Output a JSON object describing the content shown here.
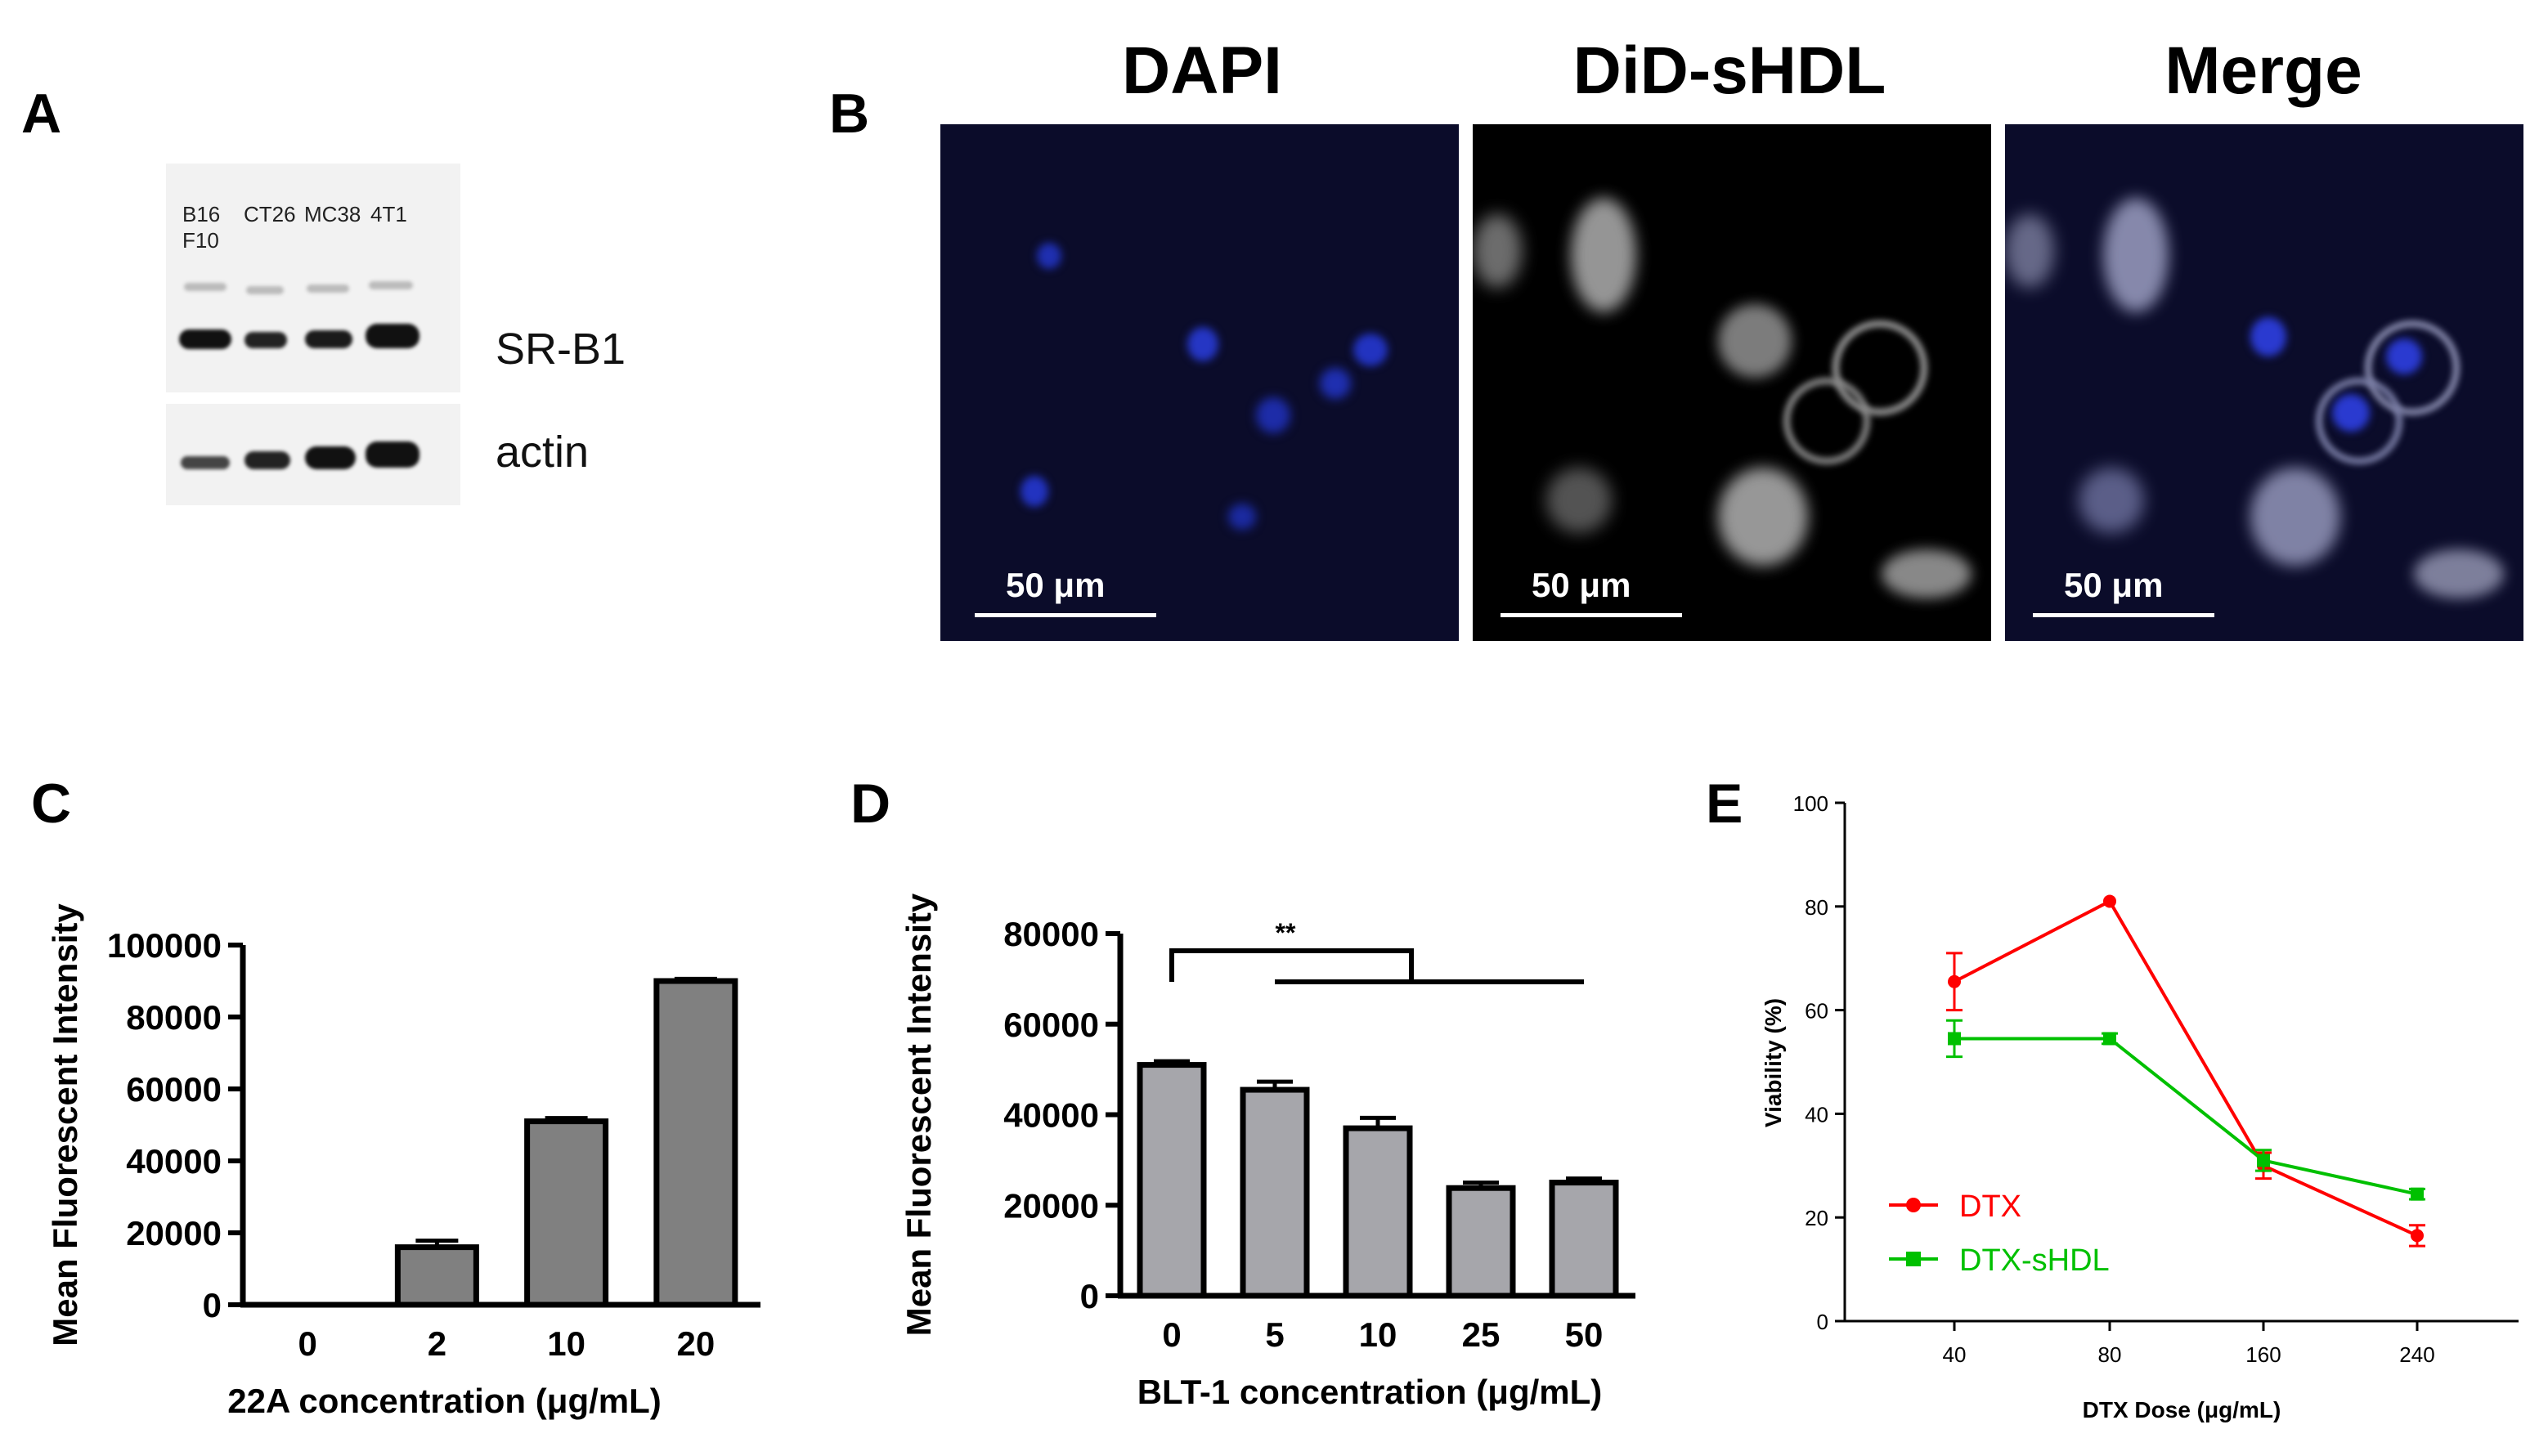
{
  "panels": {
    "A": {
      "letter": "A",
      "lanes": [
        "B16\nF10",
        "CT26",
        "MC38",
        "4T1"
      ],
      "lane_line1": [
        "B16",
        "CT26",
        "MC38",
        "4T1"
      ],
      "lane_line2": [
        "F10",
        "",
        "",
        ""
      ],
      "blot_labels": [
        "SR-B1",
        "actin"
      ]
    },
    "B": {
      "letter": "B",
      "columns": [
        "DAPI",
        "DiD-sHDL",
        "Merge"
      ],
      "scale_bar": "50 μm"
    }
  },
  "chart_data": [
    {
      "panel": "C",
      "type": "bar",
      "categories": [
        "0",
        "2",
        "10",
        "20"
      ],
      "values": [
        0,
        16000,
        51000,
        90000
      ],
      "errors": [
        0,
        1800,
        900,
        600
      ],
      "xlabel": "22A concentration (μg/mL)",
      "ylabel": "Mean Fluorescent Intensity",
      "ylim": [
        0,
        100000
      ],
      "yticks": [
        "0",
        "20000",
        "40000",
        "60000",
        "80000",
        "100000"
      ],
      "bar_color": "#808080"
    },
    {
      "panel": "D",
      "type": "bar",
      "categories": [
        "0",
        "5",
        "10",
        "25",
        "50"
      ],
      "values": [
        51000,
        45500,
        37000,
        23800,
        25000
      ],
      "errors": [
        800,
        1800,
        2300,
        1200,
        900
      ],
      "xlabel": "BLT-1 concentration (μg/mL)",
      "ylabel": "Mean Fluorescent Intensity",
      "ylim": [
        0,
        80000
      ],
      "yticks": [
        "0",
        "20000",
        "40000",
        "60000",
        "80000"
      ],
      "annotation": "**",
      "bar_color": "#a6a6ab"
    },
    {
      "panel": "E",
      "type": "line",
      "categories": [
        "40",
        "80",
        "160",
        "240"
      ],
      "series": [
        {
          "name": "DTX",
          "values": [
            65.5,
            81,
            30,
            16.5
          ],
          "errors": [
            5.5,
            0,
            2.5,
            2
          ],
          "color": "#ff0000",
          "marker": "circle"
        },
        {
          "name": "DTX-sHDL",
          "values": [
            54.5,
            54.5,
            31,
            24.5
          ],
          "errors": [
            3.5,
            1,
            2,
            1
          ],
          "color": "#00c000",
          "marker": "square"
        }
      ],
      "xlabel": "DTX Dose (μg/mL)",
      "ylabel": "Viability (%)",
      "ylim": [
        0,
        100
      ],
      "yticks": [
        "0",
        "20",
        "40",
        "60",
        "80",
        "100"
      ],
      "legend": "bottom-left"
    }
  ]
}
